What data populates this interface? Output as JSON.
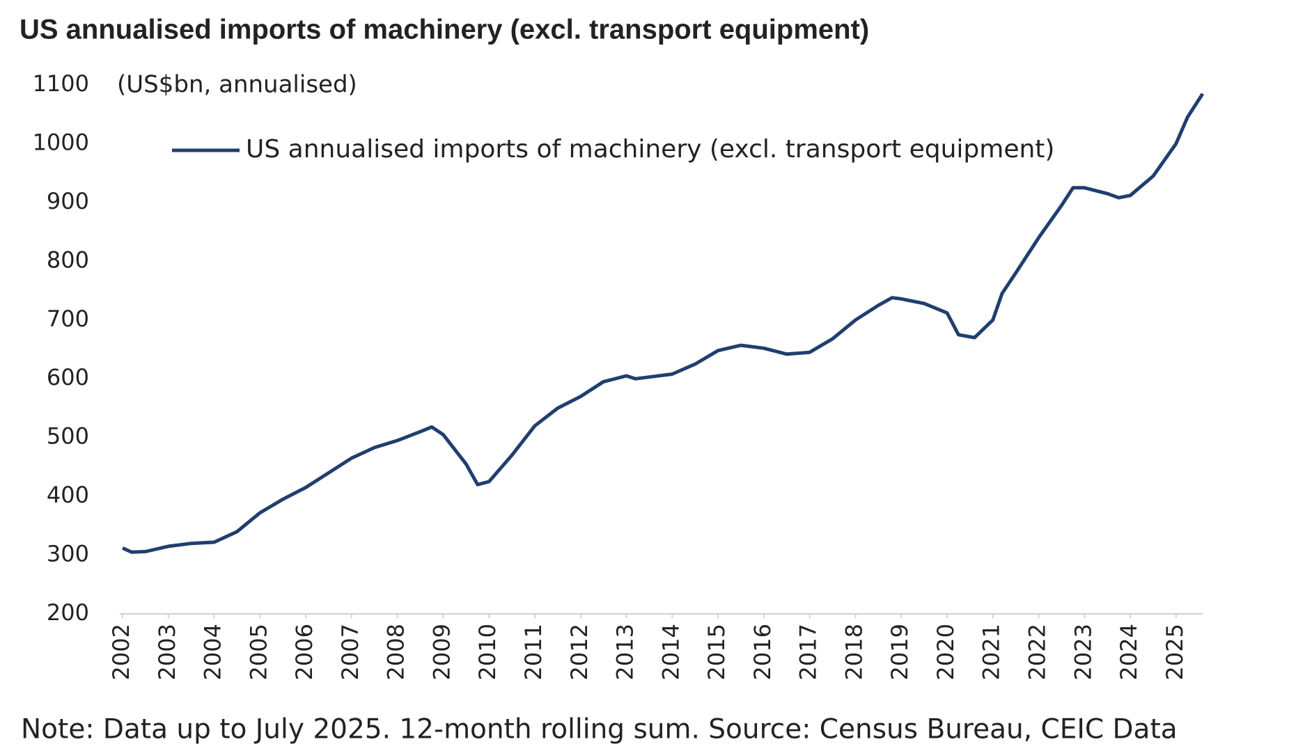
{
  "chart_data": {
    "type": "line",
    "title": "US annualised imports of machinery (excl. transport equipment)",
    "y_label": "(US$bn, annualised)",
    "note": "Note: Data up to July 2025. 12-month rolling sum. Source: Census Bureau, CEIC Data",
    "x": [
      2002.0,
      2002.2,
      2002.5,
      2003.0,
      2003.5,
      2004.0,
      2004.5,
      2005.0,
      2005.5,
      2006.0,
      2006.5,
      2007.0,
      2007.5,
      2008.0,
      2008.5,
      2008.75,
      2009.0,
      2009.5,
      2009.75,
      2010.0,
      2010.5,
      2011.0,
      2011.5,
      2012.0,
      2012.5,
      2013.0,
      2013.2,
      2013.5,
      2014.0,
      2014.5,
      2015.0,
      2015.5,
      2016.0,
      2016.5,
      2017.0,
      2017.5,
      2018.0,
      2018.5,
      2018.8,
      2019.0,
      2019.5,
      2020.0,
      2020.25,
      2020.6,
      2021.0,
      2021.2,
      2021.5,
      2022.0,
      2022.5,
      2022.75,
      2023.0,
      2023.5,
      2023.75,
      2024.0,
      2024.5,
      2025.0,
      2025.25,
      2025.58
    ],
    "series": [
      {
        "name": "US annualised imports of machinery (excl. transport equipment)",
        "color": "#1f3f6e",
        "values": [
          312,
          305,
          306,
          315,
          320,
          322,
          340,
          372,
          395,
          415,
          440,
          465,
          483,
          495,
          510,
          518,
          505,
          455,
          420,
          425,
          470,
          520,
          550,
          570,
          595,
          605,
          600,
          603,
          608,
          625,
          648,
          657,
          652,
          642,
          645,
          668,
          700,
          725,
          738,
          736,
          728,
          712,
          675,
          670,
          700,
          745,
          780,
          840,
          895,
          925,
          925,
          915,
          908,
          912,
          945,
          1000,
          1045,
          1085
        ]
      }
    ],
    "xlim": [
      2002,
      2025.58
    ],
    "xticks": [
      2002,
      2003,
      2004,
      2005,
      2006,
      2007,
      2008,
      2009,
      2010,
      2011,
      2012,
      2013,
      2014,
      2015,
      2016,
      2017,
      2018,
      2019,
      2020,
      2021,
      2022,
      2023,
      2024,
      2025
    ],
    "ylim": [
      200,
      1100
    ],
    "yticks": [
      200,
      300,
      400,
      500,
      600,
      700,
      800,
      900,
      1000,
      1100
    ],
    "legend": "top-left",
    "grid": false
  }
}
